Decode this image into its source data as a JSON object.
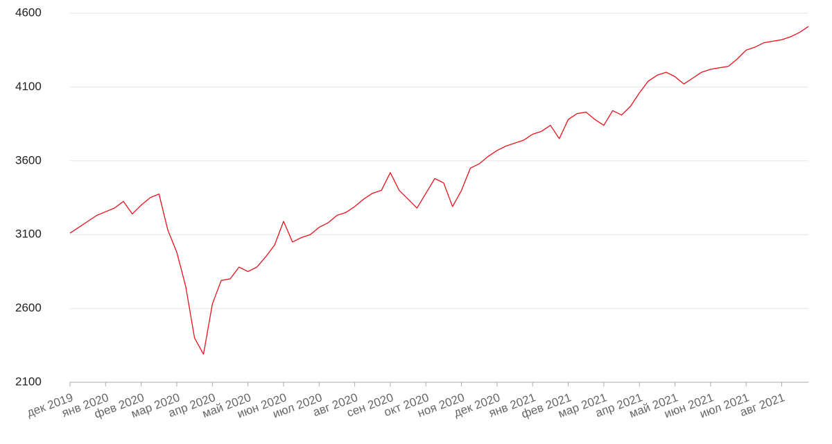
{
  "chart_data": {
    "type": "line",
    "categories": [
      "дек 2019",
      null,
      null,
      null,
      "янв 2020",
      null,
      null,
      null,
      "фев 2020",
      null,
      null,
      null,
      "мар 2020",
      null,
      null,
      null,
      "апр 2020",
      null,
      null,
      null,
      "май 2020",
      null,
      null,
      null,
      "июн 2020",
      null,
      null,
      null,
      "июл 2020",
      null,
      null,
      null,
      "авг 2020",
      null,
      null,
      null,
      "сен 2020",
      null,
      null,
      null,
      "окт 2020",
      null,
      null,
      null,
      "ноя 2020",
      null,
      null,
      null,
      "дек 2020",
      null,
      null,
      null,
      "янв 2021",
      null,
      null,
      null,
      "фев 2021",
      null,
      null,
      null,
      "мар 2021",
      null,
      null,
      null,
      "апр 2021",
      null,
      null,
      null,
      "май 2021",
      null,
      null,
      null,
      "июн 2021",
      null,
      null,
      null,
      "июл 2021",
      null,
      null,
      null,
      "авг 2021",
      null,
      null,
      null
    ],
    "values": [
      3110,
      3150,
      3190,
      3230,
      3255,
      3280,
      3325,
      3240,
      3300,
      3350,
      3375,
      3130,
      2980,
      2750,
      2400,
      2290,
      2630,
      2790,
      2800,
      2880,
      2850,
      2880,
      2950,
      3030,
      3190,
      3050,
      3080,
      3100,
      3150,
      3180,
      3230,
      3250,
      3290,
      3340,
      3380,
      3400,
      3520,
      3400,
      3340,
      3280,
      3380,
      3480,
      3450,
      3290,
      3400,
      3550,
      3580,
      3630,
      3670,
      3700,
      3720,
      3740,
      3780,
      3800,
      3840,
      3750,
      3880,
      3920,
      3930,
      3880,
      3840,
      3940,
      3910,
      3970,
      4060,
      4140,
      4180,
      4200,
      4170,
      4120,
      4160,
      4200,
      4220,
      4230,
      4240,
      4290,
      4350,
      4370,
      4400,
      4410,
      4420,
      4440,
      4470,
      4510
    ],
    "color": "#e8101a",
    "ylim": [
      2100,
      4600
    ],
    "yticks": [
      2100,
      2600,
      3100,
      3600,
      4100,
      4600
    ],
    "grid": true
  }
}
